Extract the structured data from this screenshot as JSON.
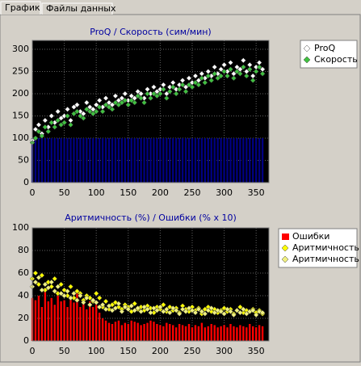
{
  "tabs": [
    "График",
    "Файлы данных"
  ],
  "chart_data": [
    {
      "type": "scatter",
      "title": "ProQ / Скорость (сим/мин)",
      "x": [
        0,
        5,
        10,
        15,
        20,
        25,
        30,
        35,
        40,
        45,
        50,
        55,
        60,
        65,
        70,
        75,
        80,
        85,
        90,
        95,
        100,
        105,
        110,
        115,
        120,
        125,
        130,
        135,
        140,
        145,
        150,
        155,
        160,
        165,
        170,
        175,
        180,
        185,
        190,
        195,
        200,
        205,
        210,
        215,
        220,
        225,
        230,
        235,
        240,
        245,
        250,
        255,
        260,
        265,
        270,
        275,
        280,
        285,
        290,
        295,
        300,
        305,
        310,
        315,
        320,
        325,
        330,
        335,
        340,
        345,
        350,
        355,
        360
      ],
      "xlim": [
        0,
        370
      ],
      "xticks": [
        0,
        50,
        100,
        150,
        200,
        250,
        300,
        350
      ],
      "ylim": [
        0,
        320
      ],
      "yticks": [
        0,
        50,
        100,
        150,
        200,
        250,
        300
      ],
      "grid": true,
      "series": [
        {
          "type": "bar",
          "color": "#000080",
          "values": [
            100,
            100,
            100,
            100,
            100,
            100,
            100,
            100,
            100,
            100,
            100,
            100,
            100,
            100,
            100,
            100,
            100,
            100,
            100,
            100,
            100,
            100,
            100,
            100,
            100,
            100,
            100,
            100,
            100,
            100,
            100,
            100,
            100,
            100,
            100,
            100,
            100,
            100,
            100,
            100,
            100,
            100,
            100,
            100,
            100,
            100,
            100,
            100,
            100,
            100,
            100,
            100,
            100,
            100,
            100,
            100,
            100,
            100,
            100,
            100,
            100,
            100,
            100,
            100,
            100,
            100,
            100,
            100,
            100,
            100,
            100,
            100,
            100
          ]
        },
        {
          "type": "scatter",
          "name": "ProQ",
          "color": "#ffffff",
          "values": [
            95,
            120,
            130,
            110,
            140,
            125,
            150,
            135,
            160,
            145,
            150,
            165,
            140,
            170,
            175,
            160,
            155,
            180,
            170,
            165,
            175,
            185,
            170,
            190,
            180,
            175,
            195,
            185,
            190,
            200,
            185,
            195,
            190,
            205,
            200,
            190,
            210,
            200,
            215,
            205,
            210,
            220,
            200,
            215,
            225,
            210,
            220,
            230,
            215,
            235,
            225,
            240,
            230,
            245,
            235,
            250,
            240,
            260,
            245,
            255,
            265,
            250,
            270,
            245,
            260,
            255,
            275,
            250,
            265,
            240,
            260,
            270,
            255
          ]
        },
        {
          "type": "scatter",
          "name": "Скорость",
          "color": "#40c040",
          "values": [
            90,
            100,
            115,
            105,
            125,
            115,
            135,
            125,
            140,
            130,
            135,
            150,
            130,
            155,
            160,
            150,
            145,
            165,
            160,
            155,
            160,
            170,
            160,
            175,
            170,
            165,
            180,
            175,
            180,
            185,
            175,
            185,
            180,
            195,
            190,
            180,
            200,
            190,
            200,
            195,
            200,
            210,
            190,
            205,
            215,
            200,
            210,
            220,
            205,
            220,
            215,
            225,
            220,
            235,
            225,
            240,
            230,
            245,
            235,
            240,
            250,
            240,
            255,
            235,
            250,
            245,
            260,
            240,
            255,
            230,
            250,
            260,
            245
          ]
        }
      ]
    },
    {
      "type": "scatter",
      "title": "Аритмичность (%) / Ошибки (% x 10)",
      "x": [
        0,
        5,
        10,
        15,
        20,
        25,
        30,
        35,
        40,
        45,
        50,
        55,
        60,
        65,
        70,
        75,
        80,
        85,
        90,
        95,
        100,
        105,
        110,
        115,
        120,
        125,
        130,
        135,
        140,
        145,
        150,
        155,
        160,
        165,
        170,
        175,
        180,
        185,
        190,
        195,
        200,
        205,
        210,
        215,
        220,
        225,
        230,
        235,
        240,
        245,
        250,
        255,
        260,
        265,
        270,
        275,
        280,
        285,
        290,
        295,
        300,
        305,
        310,
        315,
        320,
        325,
        330,
        335,
        340,
        345,
        350,
        355,
        360
      ],
      "xlim": [
        0,
        370
      ],
      "xticks": [
        0,
        50,
        100,
        150,
        200,
        250,
        300,
        350
      ],
      "ylim": [
        0,
        100
      ],
      "yticks": [
        0,
        20,
        40,
        60,
        80,
        100
      ],
      "grid": true,
      "series": [
        {
          "type": "bar",
          "name": "Ошибки",
          "color": "#ff0000",
          "values": [
            38,
            36,
            40,
            30,
            45,
            35,
            38,
            32,
            40,
            35,
            36,
            30,
            38,
            34,
            42,
            30,
            33,
            28,
            35,
            30,
            32,
            25,
            20,
            18,
            16,
            15,
            17,
            18,
            14,
            16,
            15,
            18,
            17,
            16,
            14,
            15,
            16,
            18,
            17,
            15,
            14,
            13,
            16,
            15,
            14,
            12,
            15,
            14,
            13,
            15,
            12,
            14,
            13,
            16,
            12,
            13,
            15,
            14,
            12,
            13,
            14,
            12,
            15,
            13,
            12,
            14,
            13,
            12,
            15,
            13,
            12,
            14,
            13
          ]
        },
        {
          "type": "scatter",
          "name": "Аритмичность",
          "color": "#ffff00",
          "values": [
            55,
            60,
            50,
            58,
            45,
            52,
            48,
            55,
            42,
            50,
            45,
            40,
            48,
            38,
            44,
            42,
            36,
            40,
            38,
            35,
            42,
            38,
            30,
            35,
            28,
            32,
            34,
            30,
            28,
            32,
            30,
            26,
            33,
            28,
            30,
            27,
            31,
            29,
            25,
            30,
            28,
            32,
            26,
            30,
            27,
            29,
            25,
            31,
            28,
            26,
            30,
            27,
            29,
            24,
            28,
            30,
            26,
            28,
            25,
            27,
            29,
            26,
            28,
            24,
            27,
            30,
            25,
            27,
            26,
            28,
            25,
            27,
            24
          ]
        },
        {
          "type": "scatter",
          "name": "Аритмичность",
          "color": "#f0f080",
          "values": [
            48,
            52,
            56,
            45,
            50,
            47,
            52,
            44,
            48,
            42,
            40,
            44,
            38,
            42,
            36,
            40,
            34,
            38,
            32,
            36,
            34,
            30,
            32,
            28,
            31,
            27,
            29,
            33,
            26,
            30,
            28,
            31,
            27,
            29,
            26,
            30,
            28,
            25,
            29,
            27,
            30,
            26,
            28,
            25,
            29,
            27,
            24,
            28,
            26,
            29,
            27,
            25,
            28,
            26,
            24,
            27,
            29,
            25,
            27,
            26,
            24,
            28,
            26,
            23,
            27,
            25,
            28,
            24,
            26,
            27,
            23,
            26,
            25
          ]
        }
      ]
    }
  ]
}
